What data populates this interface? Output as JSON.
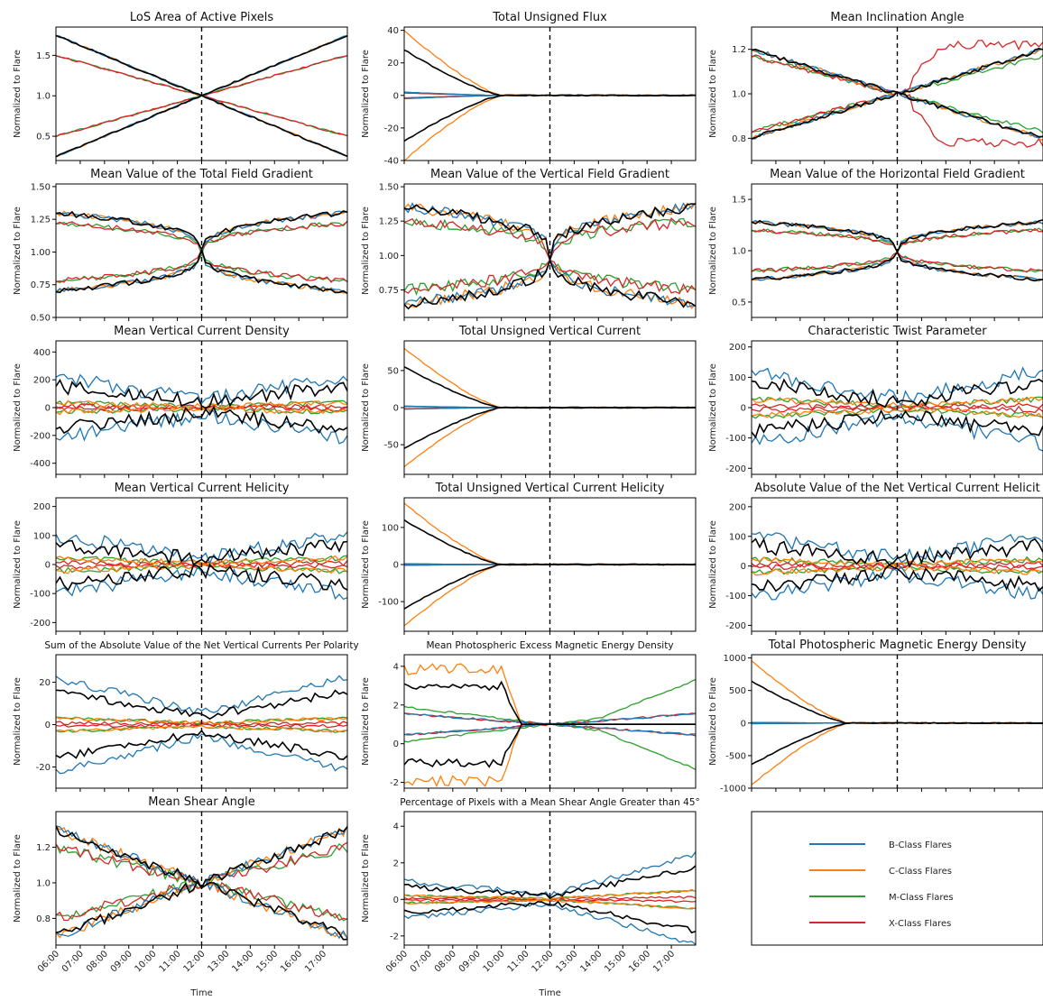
{
  "chart_data": [
    {
      "type": "line",
      "title": "LoS Area of Active Pixels",
      "ylabel": "Normalized to Flare",
      "ylim": [
        0.2,
        1.85
      ],
      "yticks": [
        0.5,
        1.0,
        1.5
      ],
      "ytick_labels": [
        "0.5",
        "1.0",
        "1.5"
      ],
      "pattern": "diverge",
      "outer": 0.75,
      "inner": 0.5,
      "noise": 0.01
    },
    {
      "type": "line",
      "title": "Total Unsigned Flux",
      "ylabel": "Normalized to Flare",
      "ylim": [
        -40,
        42
      ],
      "yticks": [
        -40,
        -20,
        0,
        20,
        40
      ],
      "ytick_labels": [
        "-40",
        "-20",
        "0",
        "20",
        "40"
      ],
      "pattern": "fan",
      "amp_orange": 40,
      "amp_black": 28,
      "amp_blue": 2,
      "amp_red": 1.5
    },
    {
      "type": "line",
      "title": "Mean Inclination Angle",
      "ylabel": "Normalized to Flare",
      "ylim": [
        0.7,
        1.3
      ],
      "yticks": [
        0.8,
        1.0,
        1.2
      ],
      "ytick_labels": [
        "0.8",
        "1.0",
        "1.2"
      ],
      "pattern": "diverge",
      "outer": 0.2,
      "inner": 0.17,
      "noise": 0.01,
      "red_outlier": true
    },
    {
      "type": "line",
      "title": "Mean Value of the Total Field Gradient",
      "ylabel": "Normalized to Flare",
      "ylim": [
        0.5,
        1.52
      ],
      "yticks": [
        0.5,
        0.75,
        1.0,
        1.25,
        1.5
      ],
      "ytick_labels": [
        "0.50",
        "0.75",
        "1.00",
        "1.25",
        "1.50"
      ],
      "pattern": "pinch",
      "outer": 0.3,
      "inner": 0.22,
      "noise": 0.02
    },
    {
      "type": "line",
      "title": "Mean Value of the Vertical Field Gradient",
      "ylabel": "Normalized to Flare",
      "ylim": [
        0.55,
        1.52
      ],
      "yticks": [
        0.75,
        1.0,
        1.25,
        1.5
      ],
      "ytick_labels": [
        "0.75",
        "1.00",
        "1.25",
        "1.50"
      ],
      "pattern": "pinch",
      "outer": 0.35,
      "inner": 0.25,
      "noise": 0.04
    },
    {
      "type": "line",
      "title": "Mean Value of the Horizontal Field Gradient",
      "ylabel": "Normalized to Flare",
      "ylim": [
        0.35,
        1.65
      ],
      "yticks": [
        0.5,
        1.0,
        1.5
      ],
      "ytick_labels": [
        "0.5",
        "1.0",
        "1.5"
      ],
      "pattern": "pinch",
      "outer": 0.28,
      "inner": 0.2,
      "noise": 0.02
    },
    {
      "type": "line",
      "title": "Mean Vertical Current Density",
      "ylabel": "Normalized to Flare",
      "ylim": [
        -480,
        480
      ],
      "yticks": [
        -400,
        -200,
        0,
        200,
        400
      ],
      "ytick_labels": [
        "-400",
        "-200",
        "0",
        "200",
        "400"
      ],
      "pattern": "band",
      "outer": 220,
      "inner": 80,
      "noise": 50
    },
    {
      "type": "line",
      "title": "Total Unsigned Vertical Current",
      "ylabel": "Normalized to Flare",
      "ylim": [
        -90,
        90
      ],
      "yticks": [
        -50,
        0,
        50
      ],
      "ytick_labels": [
        "-50",
        "0",
        "50"
      ],
      "pattern": "fan",
      "amp_orange": 80,
      "amp_black": 55,
      "amp_blue": 2,
      "amp_red": 1.5
    },
    {
      "type": "line",
      "title": "Characteristic Twist Parameter",
      "ylabel": "Normalized to Flare",
      "ylim": [
        -220,
        220
      ],
      "yticks": [
        -200,
        -100,
        0,
        100,
        200
      ],
      "ytick_labels": [
        "-200",
        "-100",
        "0",
        "100",
        "200"
      ],
      "pattern": "band",
      "outer": 120,
      "inner": 70,
      "noise": 25
    },
    {
      "type": "line",
      "title": "Mean Vertical Current Helicity",
      "ylabel": "Normalized to Flare",
      "ylim": [
        -230,
        230
      ],
      "yticks": [
        -200,
        -100,
        0,
        100,
        200
      ],
      "ytick_labels": [
        "-200",
        "-100",
        "0",
        "100",
        "200"
      ],
      "pattern": "band",
      "outer": 100,
      "inner": 55,
      "noise": 25
    },
    {
      "type": "line",
      "title": "Total Unsigned Vertical Current Helicity",
      "ylabel": "Normalized to Flare",
      "ylim": [
        -180,
        180
      ],
      "yticks": [
        -100,
        0,
        100
      ],
      "ytick_labels": [
        "-100",
        "0",
        "100"
      ],
      "pattern": "fan",
      "amp_orange": 165,
      "amp_black": 120,
      "amp_blue": 2,
      "amp_red": 1.5
    },
    {
      "type": "line",
      "title": "Absolute Value of the Net Vertical Current Helicit",
      "ylabel": "Normalized to Flare",
      "ylim": [
        -220,
        230
      ],
      "yticks": [
        -200,
        -100,
        0,
        100,
        200
      ],
      "ytick_labels": [
        "-200",
        "-100",
        "0",
        "100",
        "200"
      ],
      "pattern": "band",
      "outer": 100,
      "inner": 55,
      "noise": 25
    },
    {
      "type": "line",
      "title": "Sum of the Absolute Value of the Net Vertical Currents Per Polarity",
      "small_title": true,
      "ylabel": "Normalized to Flare",
      "ylim": [
        -30,
        33
      ],
      "yticks": [
        -20,
        0,
        20
      ],
      "ytick_labels": [
        "-20",
        "0",
        "20"
      ],
      "pattern": "band",
      "outer": 22,
      "inner": 8,
      "noise": 2
    },
    {
      "type": "line",
      "title": "Mean Photospheric Excess Magnetic Energy Density",
      "small_title": true,
      "ylabel": "Normalized to Flare",
      "ylim": [
        -2.3,
        4.6
      ],
      "yticks": [
        -2,
        0,
        2,
        4
      ],
      "ytick_labels": [
        "-2",
        "0",
        "2",
        "4"
      ],
      "pattern": "excess"
    },
    {
      "type": "line",
      "title": "Total Photospheric Magnetic Energy Density",
      "ylabel": "Normalized to Flare",
      "ylim": [
        -1000,
        1050
      ],
      "yticks": [
        -1000,
        -500,
        0,
        500,
        1000
      ],
      "ytick_labels": [
        "-1000",
        "-500",
        "0",
        "500",
        "1000"
      ],
      "pattern": "fan",
      "amp_orange": 950,
      "amp_black": 640,
      "amp_blue": 10,
      "amp_red": 8
    },
    {
      "type": "line",
      "title": "Mean Shear Angle",
      "ylabel": "Normalized to Flare",
      "ylim": [
        0.65,
        1.4
      ],
      "yticks": [
        0.8,
        1.0,
        1.2
      ],
      "ytick_labels": [
        "0.8",
        "1.0",
        "1.2"
      ],
      "pattern": "diverge",
      "outer": 0.3,
      "inner": 0.2,
      "noise": 0.03,
      "xaxis": true
    },
    {
      "type": "line",
      "title": "Percentage of Pixels with a Mean Shear Angle Greater than 45°",
      "small_title": true,
      "ylabel": "Normalized to Flare",
      "ylim": [
        -2.5,
        4.8
      ],
      "yticks": [
        -2,
        0,
        2,
        4
      ],
      "ytick_labels": [
        "-2",
        "0",
        "2",
        "4"
      ],
      "pattern": "band",
      "outer": 1.0,
      "inner": 0.5,
      "noise": 0.15,
      "widen_end": true,
      "xaxis": true
    }
  ],
  "x_axis": {
    "label": "Time",
    "tick_labels": [
      "06:00",
      "07:00",
      "08:00",
      "09:00",
      "10:00",
      "11:00",
      "12:00",
      "13:00",
      "14:00",
      "15:00",
      "16:00",
      "17:00"
    ],
    "range_hours": [
      6,
      18
    ],
    "flare_time": 12
  },
  "legend": {
    "items": [
      {
        "label": "B-Class Flares",
        "color": "#1f77b4"
      },
      {
        "label": "C-Class Flares",
        "color": "#ff7f0e"
      },
      {
        "label": "M-Class Flares",
        "color": "#2ca02c"
      },
      {
        "label": "X-Class Flares",
        "color": "#d62728"
      }
    ]
  },
  "colors": {
    "blue": "#1f77b4",
    "orange": "#ff7f0e",
    "green": "#2ca02c",
    "red": "#d62728",
    "black": "#000000"
  }
}
